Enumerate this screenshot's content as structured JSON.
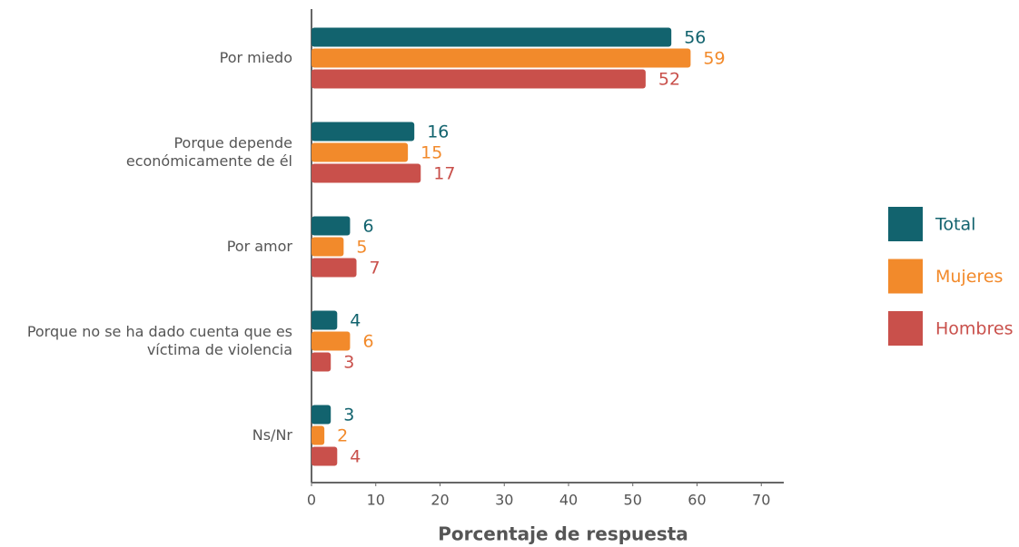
{
  "chart_data": {
    "type": "bar",
    "orientation": "horizontal",
    "xlabel": "Porcentaje de respuesta",
    "categories": [
      "Por miedo",
      "Porque depende\neconómicamente de él",
      "Por amor",
      "Porque no se ha dado cuenta que es\nvíctima de violencia",
      "Ns/Nr"
    ],
    "series": [
      {
        "name": "Total",
        "color": "#12636e",
        "values": [
          56,
          16,
          6,
          4,
          3
        ]
      },
      {
        "name": "Mujeres",
        "color": "#f28a2b",
        "values": [
          59,
          15,
          5,
          6,
          2
        ]
      },
      {
        "name": "Hombres",
        "color": "#c9504b",
        "values": [
          52,
          17,
          7,
          3,
          4
        ]
      }
    ],
    "xlim": [
      0,
      73.5
    ],
    "xticks": [
      0,
      10,
      20,
      30,
      40,
      50,
      60,
      70
    ],
    "legend": "right",
    "grid": false
  }
}
